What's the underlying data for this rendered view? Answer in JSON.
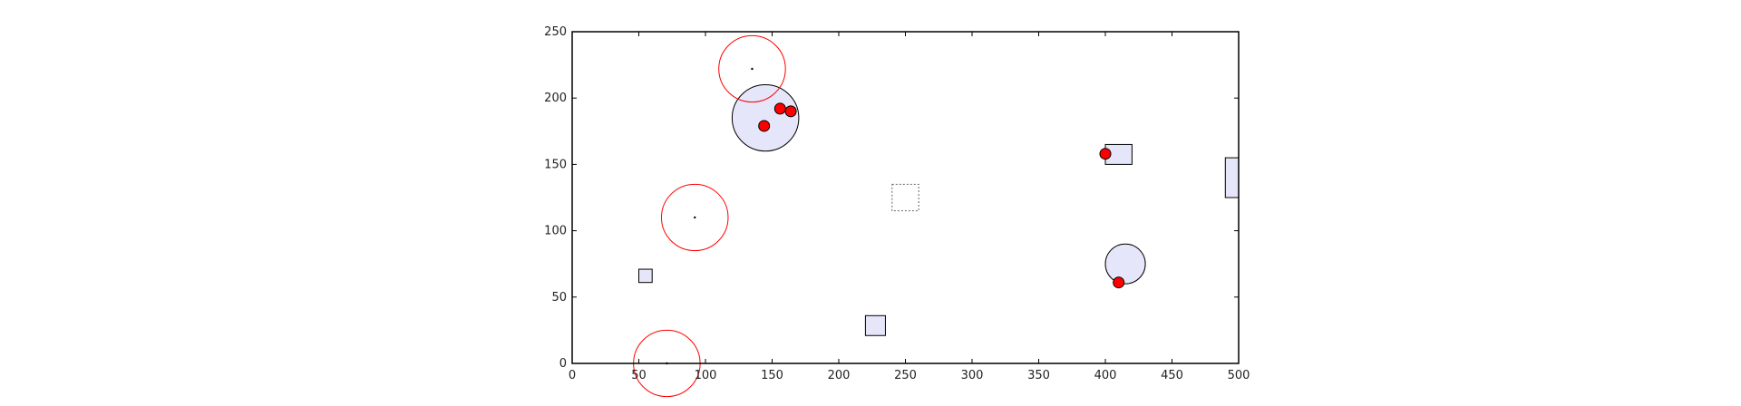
{
  "chart_data": {
    "type": "scatter",
    "title": "",
    "xlabel": "",
    "ylabel": "",
    "xlim": [
      0,
      500
    ],
    "ylim": [
      0,
      250
    ],
    "xticks": [
      0,
      50,
      100,
      150,
      200,
      250,
      300,
      350,
      400,
      450,
      500
    ],
    "yticks": [
      0,
      50,
      100,
      150,
      200,
      250
    ],
    "grid": false,
    "colors": {
      "fill": "#e6e6fa",
      "outline": "#000000",
      "ring": "#ff0000",
      "point": "#ff0000",
      "target": "#666666"
    },
    "filled_circles": [
      {
        "cx": 145,
        "cy": 185,
        "r": 25
      },
      {
        "cx": 415,
        "cy": 75,
        "r": 15
      }
    ],
    "filled_rects": [
      {
        "x": 50,
        "y": 61,
        "w": 10,
        "h": 10
      },
      {
        "x": 220,
        "y": 21,
        "w": 15,
        "h": 15
      },
      {
        "x": 400,
        "y": 150,
        "w": 20,
        "h": 15
      },
      {
        "x": 490,
        "y": 125,
        "w": 10,
        "h": 30
      }
    ],
    "target_region": {
      "x": 240,
      "y": 115,
      "w": 20,
      "h": 20
    },
    "red_rings": [
      {
        "cx": 135,
        "cy": 222,
        "r": 25
      },
      {
        "cx": 92,
        "cy": 110,
        "r": 25
      },
      {
        "cx": 71,
        "cy": 0,
        "r": 25
      }
    ],
    "ring_centers": [
      {
        "x": 135,
        "y": 222
      },
      {
        "x": 92,
        "y": 110
      },
      {
        "x": 71,
        "y": 0
      }
    ],
    "red_points": [
      {
        "x": 144,
        "y": 179
      },
      {
        "x": 156,
        "y": 192
      },
      {
        "x": 164,
        "y": 190
      },
      {
        "x": 400,
        "y": 158
      },
      {
        "x": 410,
        "y": 61
      }
    ]
  }
}
